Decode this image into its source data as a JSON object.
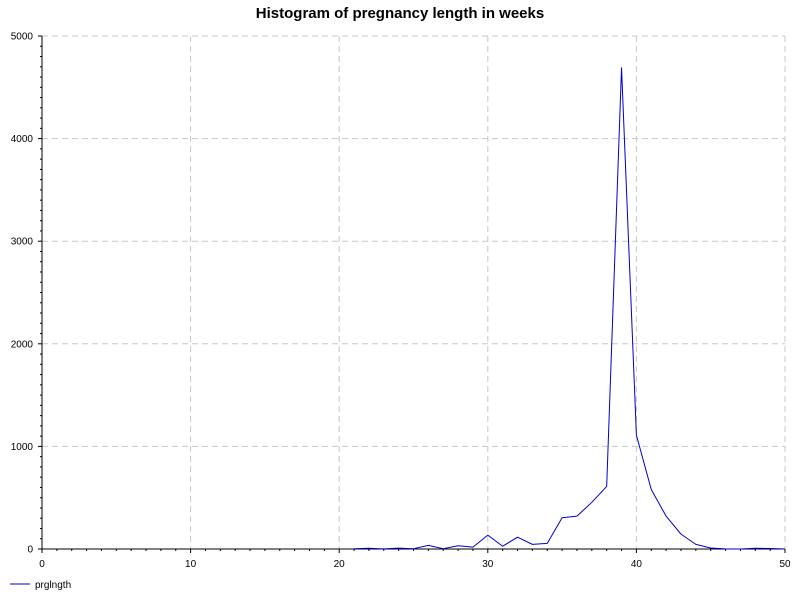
{
  "chart_data": {
    "type": "line",
    "title": "Histogram of pregnancy length in weeks",
    "xlabel": "",
    "ylabel": "",
    "xlim": [
      0,
      50
    ],
    "ylim": [
      0,
      5000
    ],
    "x_ticks": [
      0,
      10,
      20,
      30,
      40,
      50
    ],
    "y_ticks": [
      0,
      1000,
      2000,
      3000,
      4000,
      5000
    ],
    "grid": true,
    "legend_position": "bottom-left",
    "series": [
      {
        "name": "prglngth",
        "color": "#0000cc",
        "x": [
          21,
          22,
          23,
          24,
          25,
          26,
          27,
          28,
          29,
          30,
          31,
          32,
          33,
          34,
          35,
          36,
          37,
          38,
          39,
          40,
          41,
          42,
          43,
          44,
          45,
          46,
          47,
          48,
          49,
          50
        ],
        "y": [
          2,
          7,
          1,
          8,
          3,
          35,
          3,
          32,
          18,
          135,
          27,
          115,
          45,
          55,
          305,
          320,
          455,
          610,
          4690,
          1110,
          580,
          320,
          145,
          45,
          10,
          1,
          0,
          7,
          5,
          0
        ]
      }
    ]
  }
}
